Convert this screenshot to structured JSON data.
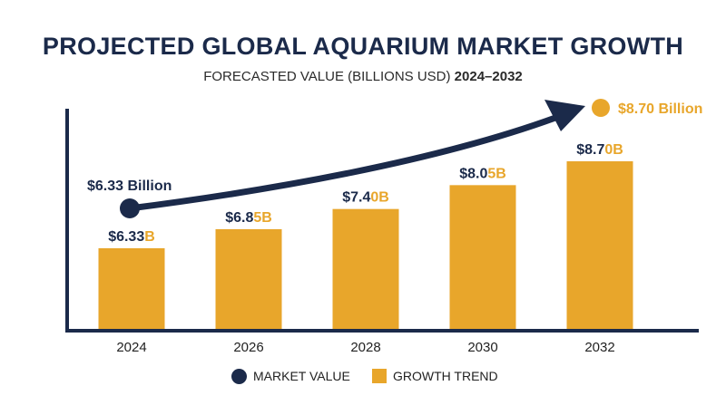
{
  "colors": {
    "navy": "#1b2a4a",
    "bar": "#e8a62b",
    "accent": "#e8a62b"
  },
  "chart_data": {
    "type": "bar",
    "title": "PROJECTED GLOBAL AQUARIUM MARKET GROWTH",
    "subtitle_prefix": "FORECASTED VALUE (BILLIONS USD)",
    "subtitle_years": "2024–2032",
    "categories": [
      "2024",
      "2026",
      "2028",
      "2030",
      "2032"
    ],
    "values": [
      6.33,
      6.85,
      7.4,
      8.05,
      8.7
    ],
    "value_labels": [
      {
        "main": "$6.33",
        "suffix": "B"
      },
      {
        "main": "$6.8",
        "suffix": "5B"
      },
      {
        "main": "$7.4",
        "suffix": "0B"
      },
      {
        "main": "$8.0",
        "suffix": "5B"
      },
      {
        "main": "$8.7",
        "suffix": "0B"
      }
    ],
    "trend": {
      "start_label": "$6.33 Billion",
      "end_label": "$8.70 Billion",
      "start_value": 6.33,
      "end_value": 8.7
    },
    "legend": [
      {
        "label": "MARKET VALUE",
        "shape": "circle",
        "color": "#1b2a4a"
      },
      {
        "label": "GROWTH TREND",
        "shape": "square",
        "color": "#e8a62b"
      }
    ],
    "grid": false,
    "legend_position": "bottom"
  }
}
